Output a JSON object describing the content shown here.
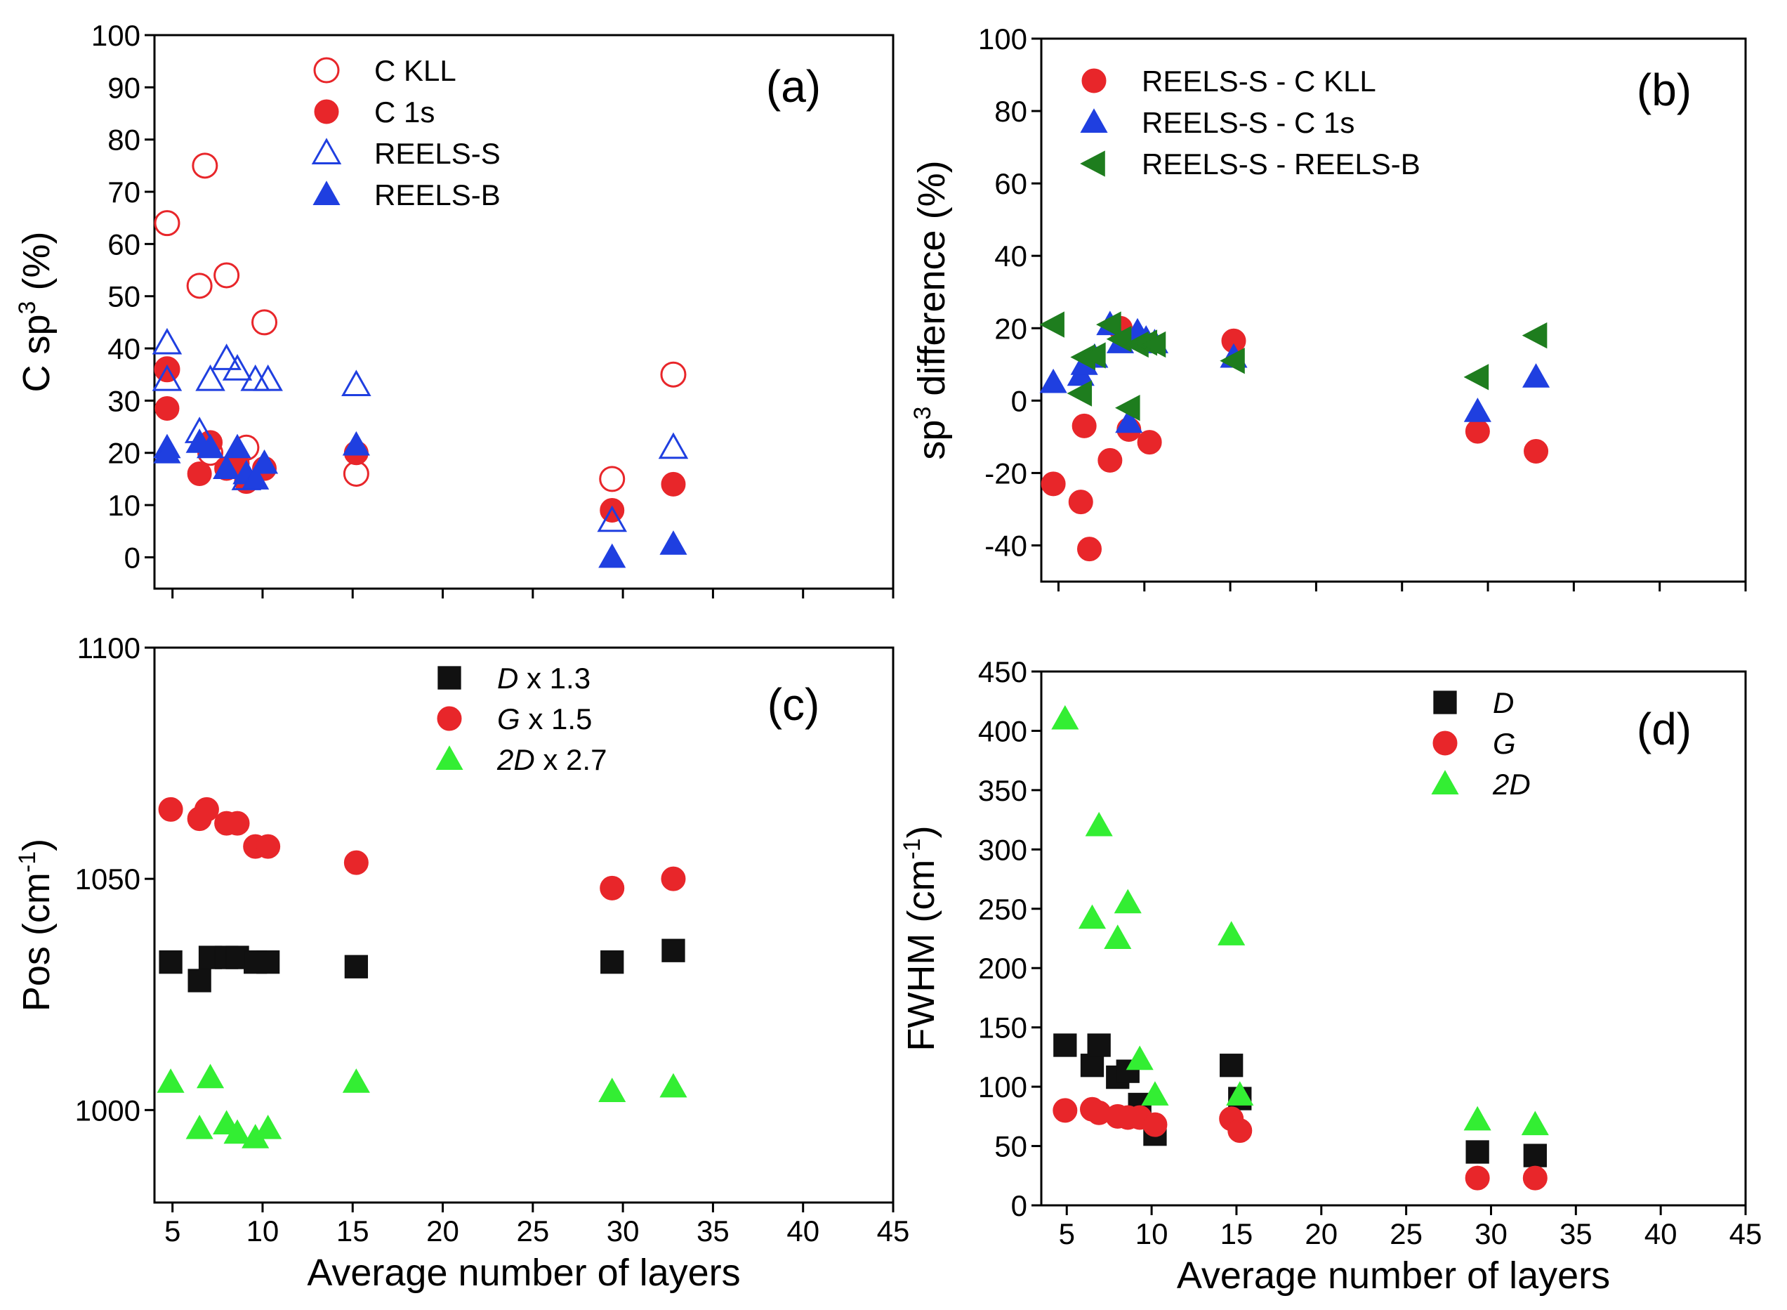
{
  "chart_data": [
    {
      "id": "a",
      "type": "scatter",
      "panel_label": "(a)",
      "xlabel": "",
      "ylabel": {
        "main": "C sp",
        "sup": "3",
        "tail": " (%)"
      },
      "xlim": [
        4,
        45
      ],
      "ylim": [
        -6,
        100
      ],
      "x_ticks": [
        5,
        10,
        15,
        20,
        25,
        30,
        35,
        40,
        45
      ],
      "x_tick_labels": [],
      "y_ticks": [
        0,
        10,
        20,
        30,
        40,
        50,
        60,
        70,
        80,
        90,
        100
      ],
      "y_tick_labels": [
        "0",
        "10",
        "20",
        "30",
        "40",
        "50",
        "60",
        "70",
        "80",
        "90",
        "100"
      ],
      "legend_position": "top-left",
      "series": [
        {
          "name": "C KLL",
          "marker": "circle-open",
          "color": "#e8262a",
          "points": [
            [
              4.7,
              64
            ],
            [
              6.5,
              52
            ],
            [
              6.8,
              75
            ],
            [
              8.0,
              54
            ],
            [
              10.1,
              45
            ],
            [
              4.7,
              36
            ],
            [
              7.1,
              20
            ],
            [
              9.1,
              21
            ],
            [
              15.2,
              16
            ],
            [
              29.4,
              15
            ],
            [
              32.8,
              35
            ]
          ]
        },
        {
          "name": "C 1s",
          "marker": "circle",
          "color": "#e8262a",
          "points": [
            [
              4.7,
              36
            ],
            [
              4.7,
              28.5
            ],
            [
              6.5,
              16
            ],
            [
              7.1,
              22
            ],
            [
              8.0,
              17
            ],
            [
              8.6,
              18
            ],
            [
              9.1,
              14.5
            ],
            [
              10.1,
              17
            ],
            [
              15.2,
              20
            ],
            [
              29.4,
              9
            ],
            [
              32.8,
              14
            ]
          ]
        },
        {
          "name": "REELS-S",
          "marker": "triangle-open",
          "color": "#1f3fe0",
          "points": [
            [
              4.7,
              41
            ],
            [
              4.7,
              34
            ],
            [
              6.5,
              24
            ],
            [
              7.1,
              34
            ],
            [
              8.0,
              38
            ],
            [
              8.6,
              36
            ],
            [
              9.1,
              15
            ],
            [
              9.6,
              34
            ],
            [
              10.3,
              34
            ],
            [
              15.2,
              33
            ],
            [
              29.4,
              7
            ],
            [
              32.8,
              21
            ]
          ]
        },
        {
          "name": "REELS-B",
          "marker": "triangle",
          "color": "#1f3fe0",
          "points": [
            [
              4.7,
              21
            ],
            [
              4.7,
              20
            ],
            [
              6.5,
              22
            ],
            [
              7.1,
              21
            ],
            [
              8.0,
              17
            ],
            [
              8.6,
              21
            ],
            [
              9.1,
              16
            ],
            [
              9.6,
              15
            ],
            [
              10.1,
              18
            ],
            [
              15.2,
              21.5
            ],
            [
              29.4,
              0
            ],
            [
              32.8,
              2.5
            ]
          ]
        }
      ]
    },
    {
      "id": "b",
      "type": "scatter",
      "panel_label": "(b)",
      "xlabel": "",
      "ylabel": {
        "main": "sp",
        "sup": "3",
        "tail": " difference (%)"
      },
      "xlim": [
        4,
        45
      ],
      "ylim": [
        -50,
        100
      ],
      "x_ticks": [
        5,
        10,
        15,
        20,
        25,
        30,
        35,
        40,
        45
      ],
      "x_tick_labels": [],
      "y_ticks": [
        -40,
        -20,
        0,
        20,
        40,
        60,
        80,
        100
      ],
      "y_tick_labels": [
        "-40",
        "-20",
        "0",
        "20",
        "40",
        "60",
        "80",
        "100"
      ],
      "legend_position": "top-left",
      "series": [
        {
          "name": "REELS-S - C KLL",
          "marker": "circle",
          "color": "#e8262a",
          "points": [
            [
              4.7,
              -23
            ],
            [
              6.5,
              -7
            ],
            [
              6.3,
              -28
            ],
            [
              6.8,
              -41
            ],
            [
              8.0,
              -16.5
            ],
            [
              8.6,
              20
            ],
            [
              9.1,
              -8
            ],
            [
              10.3,
              -11.5
            ],
            [
              15.2,
              16.5
            ],
            [
              29.4,
              -8.5
            ],
            [
              32.8,
              -14
            ]
          ]
        },
        {
          "name": "REELS-S - C 1s",
          "marker": "triangle",
          "color": "#1f3fe0",
          "points": [
            [
              4.7,
              5
            ],
            [
              6.3,
              7
            ],
            [
              6.5,
              10
            ],
            [
              7.1,
              12
            ],
            [
              8.0,
              21
            ],
            [
              8.6,
              16
            ],
            [
              9.1,
              -6
            ],
            [
              9.6,
              19
            ],
            [
              10.1,
              17
            ],
            [
              10.6,
              16
            ],
            [
              15.2,
              12
            ],
            [
              29.4,
              -3
            ],
            [
              32.8,
              6.5
            ]
          ]
        },
        {
          "name": "REELS-S - REELS-B",
          "marker": "triangle-left",
          "color": "#1e7d1e",
          "points": [
            [
              4.7,
              21
            ],
            [
              6.3,
              2
            ],
            [
              6.5,
              12
            ],
            [
              7.1,
              12.5
            ],
            [
              8.0,
              21
            ],
            [
              8.6,
              17
            ],
            [
              9.1,
              -2
            ],
            [
              9.6,
              15.5
            ],
            [
              10.1,
              16
            ],
            [
              10.6,
              15.5
            ],
            [
              15.2,
              11
            ],
            [
              29.4,
              6.5
            ],
            [
              32.8,
              18
            ]
          ]
        }
      ]
    },
    {
      "id": "c",
      "type": "scatter",
      "panel_label": "(c)",
      "xlabel": "Average number of layers",
      "ylabel": {
        "main": "Pos (cm",
        "sup": "-1",
        "tail": ")"
      },
      "xlim": [
        4,
        45
      ],
      "ylim": [
        980,
        1100
      ],
      "x_ticks": [
        5,
        10,
        15,
        20,
        25,
        30,
        35,
        40,
        45
      ],
      "x_tick_labels": [
        "5",
        "10",
        "15",
        "20",
        "25",
        "30",
        "35",
        "40",
        "45"
      ],
      "y_ticks": [
        1000,
        1050,
        1100
      ],
      "y_tick_labels": [
        "1000",
        "1050",
        "1100"
      ],
      "legend_position": "top-center",
      "series": [
        {
          "name": "D",
          "name_suffix": " x 1.3",
          "marker": "square",
          "color": "#111111",
          "points": [
            [
              4.9,
              1032
            ],
            [
              6.5,
              1028
            ],
            [
              7.1,
              1033
            ],
            [
              8.0,
              1033
            ],
            [
              8.6,
              1033
            ],
            [
              9.6,
              1032
            ],
            [
              10.3,
              1032
            ],
            [
              15.2,
              1031
            ],
            [
              29.4,
              1032
            ],
            [
              32.8,
              1034.5
            ]
          ]
        },
        {
          "name": "G",
          "name_suffix": " x 1.5",
          "marker": "circle",
          "color": "#e8262a",
          "points": [
            [
              4.9,
              1065
            ],
            [
              6.5,
              1063
            ],
            [
              6.9,
              1065
            ],
            [
              8.0,
              1062
            ],
            [
              8.6,
              1062
            ],
            [
              9.6,
              1057
            ],
            [
              10.3,
              1057
            ],
            [
              15.2,
              1053.5
            ],
            [
              29.4,
              1048
            ],
            [
              32.8,
              1050
            ]
          ]
        },
        {
          "name": "2D",
          "name_suffix": " x 2.7",
          "marker": "triangle",
          "color": "#33ee33",
          "points": [
            [
              4.9,
              1006
            ],
            [
              6.5,
              996
            ],
            [
              7.1,
              1007
            ],
            [
              8.0,
              997
            ],
            [
              8.6,
              995
            ],
            [
              9.6,
              994
            ],
            [
              10.3,
              996
            ],
            [
              15.2,
              1006
            ],
            [
              29.4,
              1004
            ],
            [
              32.8,
              1005
            ]
          ]
        }
      ]
    },
    {
      "id": "d",
      "type": "scatter",
      "panel_label": "(d)",
      "xlabel": "Average number of layers",
      "ylabel": {
        "main": "FWHM (cm",
        "sup": "-1",
        "tail": ")"
      },
      "xlim": [
        3.5,
        45
      ],
      "ylim": [
        0,
        450
      ],
      "x_ticks": [
        5,
        10,
        15,
        20,
        25,
        30,
        35,
        40,
        45
      ],
      "x_tick_labels": [
        "5",
        "10",
        "15",
        "20",
        "25",
        "30",
        "35",
        "40",
        "45"
      ],
      "y_ticks": [
        0,
        50,
        100,
        150,
        200,
        250,
        300,
        350,
        400,
        450
      ],
      "y_tick_labels": [
        "0",
        "50",
        "100",
        "150",
        "200",
        "250",
        "300",
        "350",
        "400",
        "450"
      ],
      "legend_position": "top-center",
      "series": [
        {
          "name": "D",
          "name_suffix": "",
          "marker": "square",
          "color": "#111111",
          "points": [
            [
              4.9,
              135
            ],
            [
              6.5,
              118
            ],
            [
              6.9,
              135
            ],
            [
              8.0,
              108
            ],
            [
              8.6,
              113
            ],
            [
              9.3,
              85
            ],
            [
              10.2,
              60
            ],
            [
              14.7,
              118
            ],
            [
              15.2,
              90
            ],
            [
              29.2,
              45
            ],
            [
              32.6,
              42
            ]
          ]
        },
        {
          "name": "G",
          "name_suffix": "",
          "marker": "circle",
          "color": "#e8262a",
          "points": [
            [
              4.9,
              80
            ],
            [
              6.5,
              81
            ],
            [
              6.9,
              78
            ],
            [
              8.0,
              75
            ],
            [
              8.6,
              74
            ],
            [
              9.3,
              74
            ],
            [
              10.2,
              68
            ],
            [
              14.7,
              73
            ],
            [
              15.2,
              63
            ],
            [
              29.2,
              23
            ],
            [
              32.6,
              23
            ]
          ]
        },
        {
          "name": "2D",
          "name_suffix": "",
          "marker": "triangle",
          "color": "#33ee33",
          "points": [
            [
              4.9,
              410
            ],
            [
              6.5,
              242
            ],
            [
              6.9,
              320
            ],
            [
              8.0,
              225
            ],
            [
              8.6,
              255
            ],
            [
              9.3,
              123
            ],
            [
              10.2,
              93
            ],
            [
              14.7,
              228
            ],
            [
              15.2,
              93
            ],
            [
              29.2,
              72
            ],
            [
              32.6,
              68
            ]
          ]
        }
      ]
    }
  ]
}
